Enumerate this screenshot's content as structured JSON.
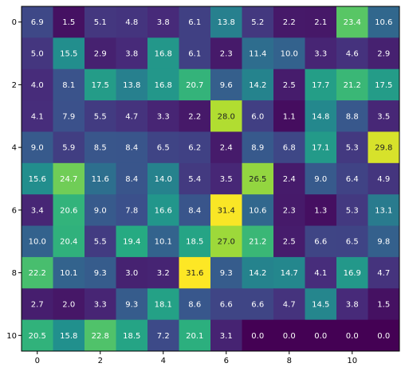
{
  "chart_data": {
    "type": "heatmap",
    "colormap": "viridis",
    "grid": false,
    "legend": "none",
    "x_ticks": [
      0,
      2,
      4,
      6,
      8,
      10
    ],
    "y_ticks": [
      0,
      2,
      4,
      6,
      8,
      10
    ],
    "x_tick_labels": [
      "0",
      "2",
      "4",
      "6",
      "8",
      "10"
    ],
    "y_tick_labels": [
      "0",
      "2",
      "4",
      "6",
      "8",
      "10"
    ],
    "n_rows": 11,
    "n_cols": 12,
    "vmin": 0.0,
    "vmax": 31.6,
    "values": [
      [
        6.9,
        1.5,
        5.1,
        4.8,
        3.8,
        6.1,
        13.8,
        5.2,
        2.2,
        2.1,
        23.4,
        10.6
      ],
      [
        5.0,
        15.5,
        2.9,
        3.8,
        16.8,
        6.1,
        2.3,
        11.4,
        10.0,
        3.3,
        4.6,
        2.9
      ],
      [
        4.0,
        8.1,
        17.5,
        13.8,
        16.8,
        20.7,
        9.6,
        14.2,
        2.5,
        17.7,
        21.2,
        17.5
      ],
      [
        4.1,
        7.9,
        5.5,
        4.7,
        3.3,
        2.2,
        28.0,
        6.0,
        1.1,
        14.8,
        8.8,
        3.5
      ],
      [
        9.0,
        5.9,
        8.5,
        8.4,
        6.5,
        6.2,
        2.4,
        8.9,
        6.8,
        17.1,
        5.3,
        29.8
      ],
      [
        15.6,
        24.7,
        11.6,
        8.4,
        14.0,
        5.4,
        3.5,
        26.5,
        2.4,
        9.0,
        6.4,
        4.9
      ],
      [
        3.4,
        20.6,
        9.0,
        7.8,
        16.6,
        8.4,
        31.4,
        10.6,
        2.3,
        1.3,
        5.3,
        13.1
      ],
      [
        10.0,
        20.4,
        5.5,
        19.4,
        10.1,
        18.5,
        27.0,
        21.2,
        2.5,
        6.6,
        6.5,
        9.8
      ],
      [
        22.2,
        10.1,
        9.3,
        3.0,
        3.2,
        31.6,
        9.3,
        14.2,
        14.7,
        4.1,
        16.9,
        4.7
      ],
      [
        2.7,
        2.0,
        3.3,
        9.3,
        18.1,
        8.6,
        6.6,
        6.6,
        4.7,
        14.5,
        3.8,
        1.5
      ],
      [
        20.5,
        15.8,
        22.8,
        18.5,
        7.2,
        20.1,
        3.1,
        0.0,
        0.0,
        0.0,
        0.0,
        0.0
      ]
    ]
  }
}
